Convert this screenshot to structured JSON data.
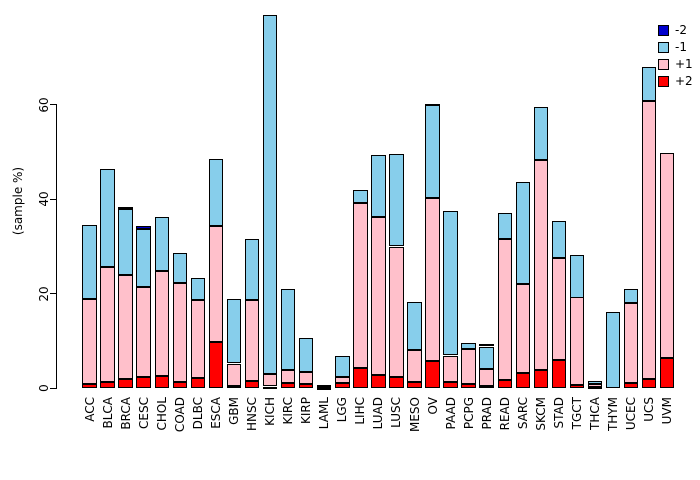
{
  "chart_data": {
    "type": "bar",
    "stacked": true,
    "ylabel": "(sample %)",
    "yticks": [
      "0",
      "20",
      "40",
      "60"
    ],
    "ytick_values": [
      0,
      20,
      40,
      60
    ],
    "ylim": [
      0,
      80
    ],
    "grid": false,
    "legend_position": "top-right",
    "legend": [
      {
        "label": "-2",
        "color": "#0000CD"
      },
      {
        "label": "-1",
        "color": "#87CEEB"
      },
      {
        "label": "+1",
        "color": "#FFC0CB"
      },
      {
        "label": "+2",
        "color": "#FF0000"
      }
    ],
    "bar_border_color": "#000000",
    "categories": [
      "ACC",
      "BLCA",
      "BRCA",
      "CESC",
      "CHOL",
      "COAD",
      "DLBC",
      "ESCA",
      "GBM",
      "HNSC",
      "KICH",
      "KIRC",
      "KIRP",
      "LAML",
      "LGG",
      "LIHC",
      "LUAD",
      "LUSC",
      "MESO",
      "OV",
      "PAAD",
      "PCPG",
      "PRAD",
      "READ",
      "SARC",
      "SKCM",
      "STAD",
      "TGCT",
      "THCA",
      "THYM",
      "UCEC",
      "UCS",
      "UVM"
    ],
    "series": [
      {
        "name": "+2",
        "color": "#FF0000",
        "values": [
          0.9,
          1.2,
          1.9,
          2.4,
          2.5,
          1.3,
          2.1,
          9.7,
          0.5,
          1.5,
          0.3,
          1.1,
          0.8,
          0.1,
          1.1,
          4.2,
          2.8,
          2.3,
          1.3,
          5.7,
          1.2,
          0.8,
          0.5,
          1.7,
          3.1,
          3.8,
          5.9,
          0.6,
          0.2,
          0,
          1.0,
          2.0,
          6.3
        ]
      },
      {
        "name": "+1",
        "color": "#FFC0CB",
        "values": [
          18.0,
          24.5,
          22.1,
          19.1,
          22.4,
          21.0,
          16.6,
          24.6,
          4.7,
          17.2,
          2.7,
          2.7,
          2.5,
          0.4,
          1.3,
          35.0,
          33.5,
          27.7,
          6.8,
          34.6,
          5.7,
          7.5,
          3.5,
          29.9,
          19.0,
          44.5,
          21.6,
          18.6,
          0.7,
          0,
          17.1,
          58.9,
          43.6
        ]
      },
      {
        "name": "-1",
        "color": "#87CEEB",
        "values": [
          15.7,
          20.7,
          14.0,
          12.2,
          11.4,
          6.3,
          4.6,
          14.2,
          13.7,
          13.0,
          76.0,
          17.1,
          7.3,
          0.1,
          4.4,
          2.8,
          13.2,
          19.7,
          10.2,
          19.7,
          30.6,
          1.2,
          4.8,
          5.6,
          21.5,
          11.2,
          8.0,
          9.0,
          0.6,
          16.2,
          3.0,
          7.1,
          0
        ]
      },
      {
        "name": "-2",
        "color": "#0000CD",
        "values": [
          0,
          0,
          0.4,
          0.6,
          0,
          0,
          0,
          0,
          0,
          0,
          0,
          0,
          0,
          0,
          0,
          0,
          0,
          0,
          0,
          0.3,
          0,
          0,
          0.5,
          0,
          0,
          0,
          0,
          0,
          0,
          0,
          0,
          0,
          0
        ]
      }
    ],
    "totals": [
      34.6,
      46.4,
      38.4,
      34.3,
      36.3,
      28.6,
      23.3,
      48.5,
      18.9,
      31.7,
      79.0,
      20.9,
      10.6,
      0.6,
      6.8,
      42.0,
      49.5,
      49.7,
      18.3,
      60.3,
      37.5,
      9.5,
      9.3,
      37.2,
      43.6,
      59.5,
      35.5,
      28.2,
      1.5,
      16.2,
      21.1,
      68.0,
      49.9
    ]
  }
}
